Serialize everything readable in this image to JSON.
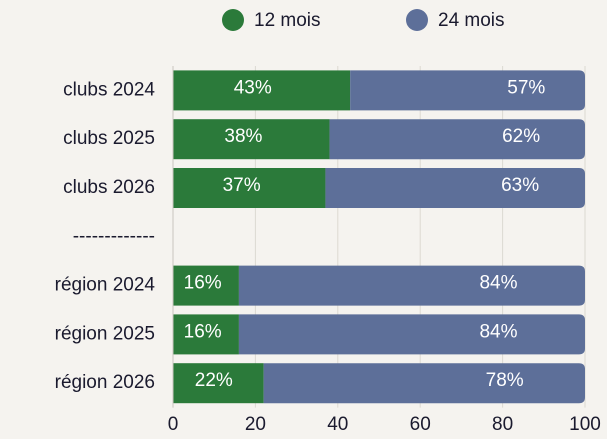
{
  "chart_data": {
    "type": "stacked-bar-horizontal",
    "categories": [
      "clubs 2024",
      "clubs 2025",
      "clubs 2026",
      "-------------",
      "région 2024",
      "région 2025",
      "région 2026"
    ],
    "series": [
      {
        "name": "12 mois",
        "color": "#2b7a3a",
        "values": [
          43,
          38,
          37,
          null,
          16,
          16,
          22
        ],
        "value_labels": [
          "43%",
          "38%",
          "37%",
          null,
          "16%",
          "16%",
          "22%"
        ]
      },
      {
        "name": "24 mois",
        "color": "#5d6f99",
        "values": [
          57,
          62,
          63,
          null,
          84,
          84,
          78
        ],
        "value_labels": [
          "57%",
          "62%",
          "63%",
          null,
          "84%",
          "84%",
          "78%"
        ]
      }
    ],
    "xlim": [
      0,
      100
    ],
    "xticks": [
      0,
      20,
      40,
      60,
      80,
      100
    ],
    "grid": true
  }
}
